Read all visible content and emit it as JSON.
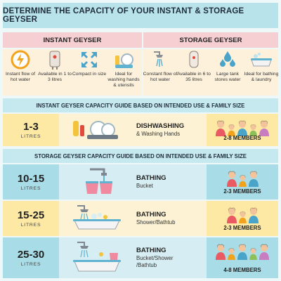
{
  "title": "DETERMINE THE CAPACITY OF YOUR INSTANT & STORAGE GEYSER",
  "instant": {
    "header": "INSTANT GEYSER",
    "features": [
      {
        "icon": "lightning-clock-icon",
        "label": "Instant flow of hot water"
      },
      {
        "icon": "geyser-unit-icon",
        "label": "Available in 1 to 3 litres"
      },
      {
        "icon": "compact-arrows-icon",
        "label": "Compact in size"
      },
      {
        "icon": "dishwashing-icon",
        "label": "Ideal for washing hands & utensils"
      }
    ]
  },
  "storage": {
    "header": "STORAGE GEYSER",
    "features": [
      {
        "icon": "shower-tap-icon",
        "label": "Constant flow of hot water"
      },
      {
        "icon": "storage-tank-icon",
        "label": "Available in 6 to 35 litres"
      },
      {
        "icon": "water-drops-icon",
        "label": "Large tank stores water"
      },
      {
        "icon": "bathtub-icon",
        "label": "Ideal for bathing & laundry"
      }
    ]
  },
  "instant_guide": {
    "title": "INSTANT GEYSER CAPACITY GUIDE BASED ON INTENDED USE & FAMILY SIZE",
    "rows": [
      {
        "capacity": "1-3",
        "unit": "LITRES",
        "use": "DISHWASHING",
        "detail": "& Washing Hands",
        "members": "2-8 MEMBERS",
        "people": 5,
        "theme": "yel"
      }
    ]
  },
  "storage_guide": {
    "title": "STORAGE GEYSER CAPACITY GUIDE BASED ON INTENDED USE & FAMILY SIZE",
    "rows": [
      {
        "capacity": "10-15",
        "unit": "LITRES",
        "use": "BATHING",
        "detail": "Bucket",
        "members": "2-3 MEMBERS",
        "people": 3,
        "theme": "blu"
      },
      {
        "capacity": "15-25",
        "unit": "LITRES",
        "use": "BATHING",
        "detail": "Shower/Bathtub",
        "members": "2-3 MEMBERS",
        "people": 3,
        "theme": "yel"
      },
      {
        "capacity": "25-30",
        "unit": "LITRES",
        "use": "BATHING",
        "detail": "Bucket/Shower /Bathtub",
        "members": "4-8 MEMBERS",
        "people": 5,
        "theme": "blu"
      }
    ]
  },
  "colors": {
    "title_bg": "#b9e3ea",
    "header_bg": "#f6cfd3",
    "feature_bg": "#fdf1dc",
    "yellow": "#fde9a4",
    "blue": "#a8dce6"
  }
}
